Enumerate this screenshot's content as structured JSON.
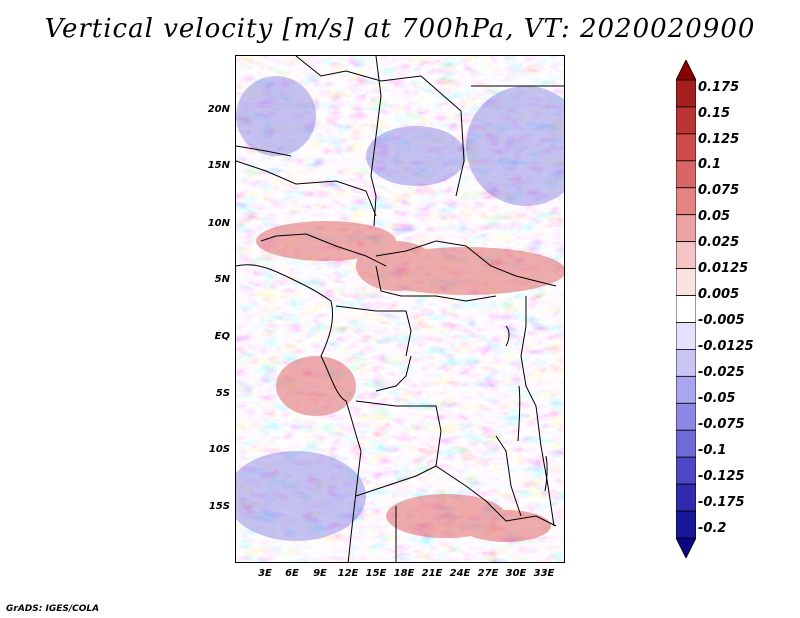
{
  "title": "Vertical velocity [m/s] at 700hPa, VT: 2020020900",
  "footer": "GrADS: IGES/COLA",
  "map": {
    "variable": "vertical velocity",
    "level": "700hPa",
    "lon_range": [
      0,
      35
    ],
    "lat_range": [
      -20,
      25
    ],
    "lat_ticks": [
      "20N",
      "15N",
      "10N",
      "5N",
      "EQ",
      "5S",
      "10S",
      "15S"
    ],
    "lon_ticks": [
      "3E",
      "6E",
      "9E",
      "12E",
      "15E",
      "18E",
      "21E",
      "24E",
      "27E",
      "30E",
      "33E"
    ]
  },
  "colorbar": {
    "levels": [
      "0.175",
      "0.15",
      "0.125",
      "0.1",
      "0.075",
      "0.05",
      "0.025",
      "0.0125",
      "0.005",
      "-0.005",
      "-0.0125",
      "-0.025",
      "-0.05",
      "-0.075",
      "-0.1",
      "-0.125",
      "-0.175",
      "-0.2"
    ],
    "colors": [
      "#8b0000",
      "#a51f1f",
      "#bb3535",
      "#cc4c4c",
      "#d96666",
      "#e48484",
      "#eda3a3",
      "#f5c4c4",
      "#fbe2e2",
      "#ffffff",
      "#e3e1fb",
      "#c8c4f5",
      "#aaa6ed",
      "#8c88e3",
      "#6e6ad8",
      "#4d49c6",
      "#2f2bb0",
      "#19169a",
      "#0a0780"
    ]
  }
}
